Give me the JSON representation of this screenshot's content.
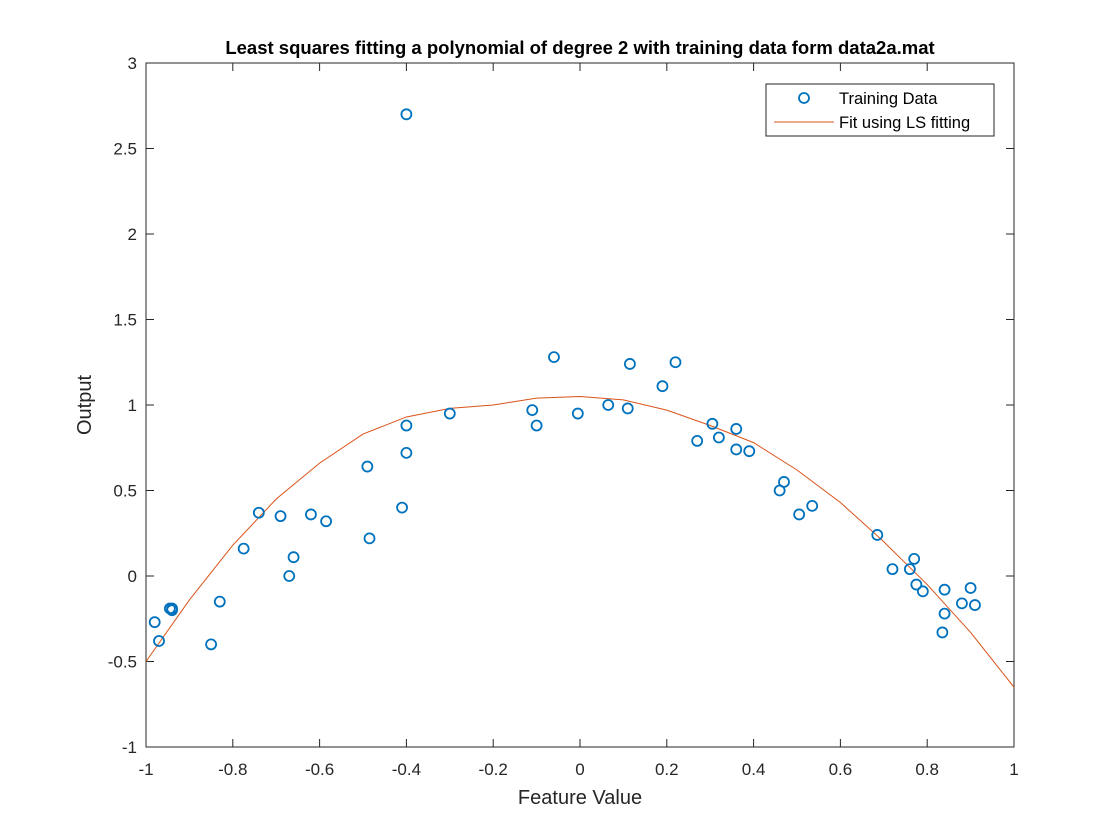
{
  "chart_data": {
    "type": "scatter",
    "title": "Least squares fitting a polynomial of degree 2 with training data form data2a.mat",
    "xlabel": "Feature Value",
    "ylabel": "Output",
    "xlim": [
      -1,
      1
    ],
    "ylim": [
      -1,
      3
    ],
    "xticks": [
      -1,
      -0.8,
      -0.6,
      -0.4,
      -0.2,
      0,
      0.2,
      0.4,
      0.6,
      0.8,
      1
    ],
    "xtick_labels": [
      "-1",
      "-0.8",
      "-0.6",
      "-0.4",
      "-0.2",
      "0",
      "0.2",
      "0.4",
      "0.6",
      "0.8",
      "1"
    ],
    "yticks": [
      -1,
      -0.5,
      0,
      0.5,
      1,
      1.5,
      2,
      2.5,
      3
    ],
    "ytick_labels": [
      "-1",
      "-0.5",
      "0",
      "0.5",
      "1",
      "1.5",
      "2",
      "2.5",
      "3"
    ],
    "grid": false,
    "legend_position": "top-right",
    "series": [
      {
        "name": "Training Data",
        "kind": "markers",
        "color": "#0072BD",
        "x": [
          -0.98,
          -0.97,
          -0.945,
          -0.94,
          -0.94,
          -0.85,
          -0.83,
          -0.775,
          -0.74,
          -0.69,
          -0.67,
          -0.66,
          -0.62,
          -0.585,
          -0.49,
          -0.485,
          -0.41,
          -0.4,
          -0.4,
          -0.4,
          -0.3,
          -0.11,
          -0.1,
          -0.06,
          -0.005,
          0.065,
          0.11,
          0.115,
          0.19,
          0.22,
          0.27,
          0.305,
          0.32,
          0.36,
          0.36,
          0.39,
          0.46,
          0.47,
          0.505,
          0.535,
          0.685,
          0.72,
          0.76,
          0.77,
          0.775,
          0.79,
          0.835,
          0.84,
          0.84,
          0.88,
          0.9,
          0.91
        ],
        "y": [
          -0.27,
          -0.38,
          -0.19,
          -0.2,
          -0.19,
          -0.4,
          -0.15,
          0.16,
          0.37,
          0.35,
          0.0,
          0.11,
          0.36,
          0.32,
          0.64,
          0.22,
          0.4,
          2.7,
          0.88,
          0.72,
          0.95,
          0.97,
          0.88,
          1.28,
          0.95,
          1.0,
          0.98,
          1.24,
          1.11,
          1.25,
          0.79,
          0.89,
          0.81,
          0.86,
          0.74,
          0.73,
          0.5,
          0.55,
          0.36,
          0.41,
          0.24,
          0.04,
          0.04,
          0.1,
          -0.05,
          -0.09,
          -0.33,
          -0.08,
          -0.22,
          -0.16,
          -0.07,
          -0.17
        ]
      },
      {
        "name": "Fit using LS fitting",
        "kind": "line",
        "color": "#D95319",
        "x": [
          -1,
          -0.9,
          -0.8,
          -0.7,
          -0.6,
          -0.5,
          -0.4,
          -0.3,
          -0.2,
          -0.1,
          0,
          0.1,
          0.2,
          0.3,
          0.4,
          0.5,
          0.6,
          0.7,
          0.8,
          0.9,
          1
        ],
        "y": [
          -0.5,
          -0.14,
          0.18,
          0.45,
          0.66,
          0.83,
          0.93,
          0.98,
          1.0,
          1.04,
          1.05,
          1.03,
          0.97,
          0.88,
          0.78,
          0.62,
          0.43,
          0.2,
          -0.05,
          -0.33,
          -0.65
        ]
      }
    ]
  }
}
